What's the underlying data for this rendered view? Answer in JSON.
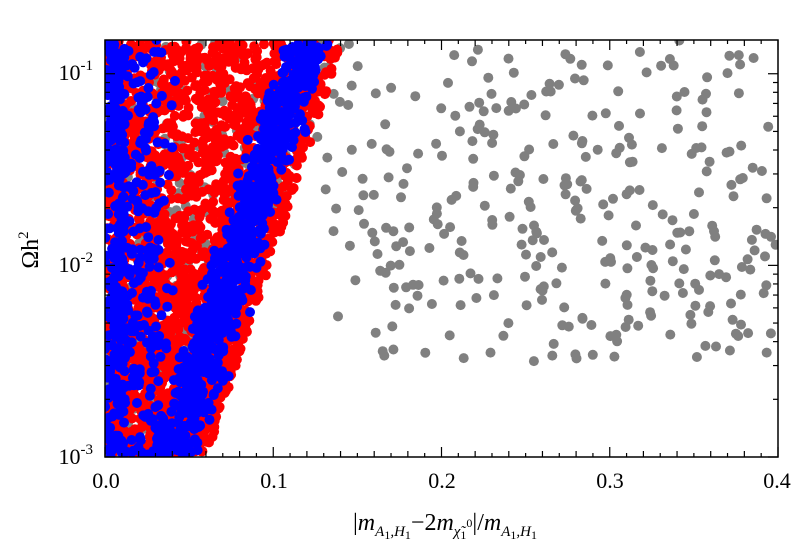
{
  "chart_data": {
    "type": "scatter",
    "title": "",
    "xlabel": "|m_{A1,H1} - 2m_{χ̃1⁰}| / m_{A1,H1}",
    "ylabel": "Ωh²",
    "xlim": [
      0.0,
      0.4
    ],
    "ylim": [
      0.001,
      0.15
    ],
    "yscale": "log",
    "grid": false,
    "legend": "none",
    "x_ticks": [
      "0.0",
      "0.1",
      "0.2",
      "0.3",
      "0.4"
    ],
    "y_ticks": [
      {
        "base": "10",
        "exp": "-1"
      },
      {
        "base": "10",
        "exp": "-2"
      },
      {
        "base": "10",
        "exp": "-3"
      }
    ],
    "series": [
      {
        "name": "gray",
        "color": "#808080",
        "note": "scattered over full range, x up to 0.4"
      },
      {
        "name": "red",
        "color": "#ff0000",
        "note": "dense band, x <= ~0.14"
      },
      {
        "name": "blue",
        "color": "#0000ff",
        "note": "dense band overlapping red, x <= ~0.15"
      }
    ],
    "x_label_parts": {
      "open": "|",
      "m1": "m",
      "sub1": "A",
      "sub1b": "1",
      "sub1c": ",H",
      "sub1d": "1",
      "minus": "−2",
      "m2": "m",
      "chi": "χ̃",
      "chisub": "1",
      "chisup": "0",
      "close": "|/",
      "m3": "m",
      "sub3": "A",
      "sub3b": "1",
      "sub3c": ",H",
      "sub3d": "1"
    },
    "y_label_parts": {
      "base": "Ωh",
      "sup": "2"
    }
  }
}
